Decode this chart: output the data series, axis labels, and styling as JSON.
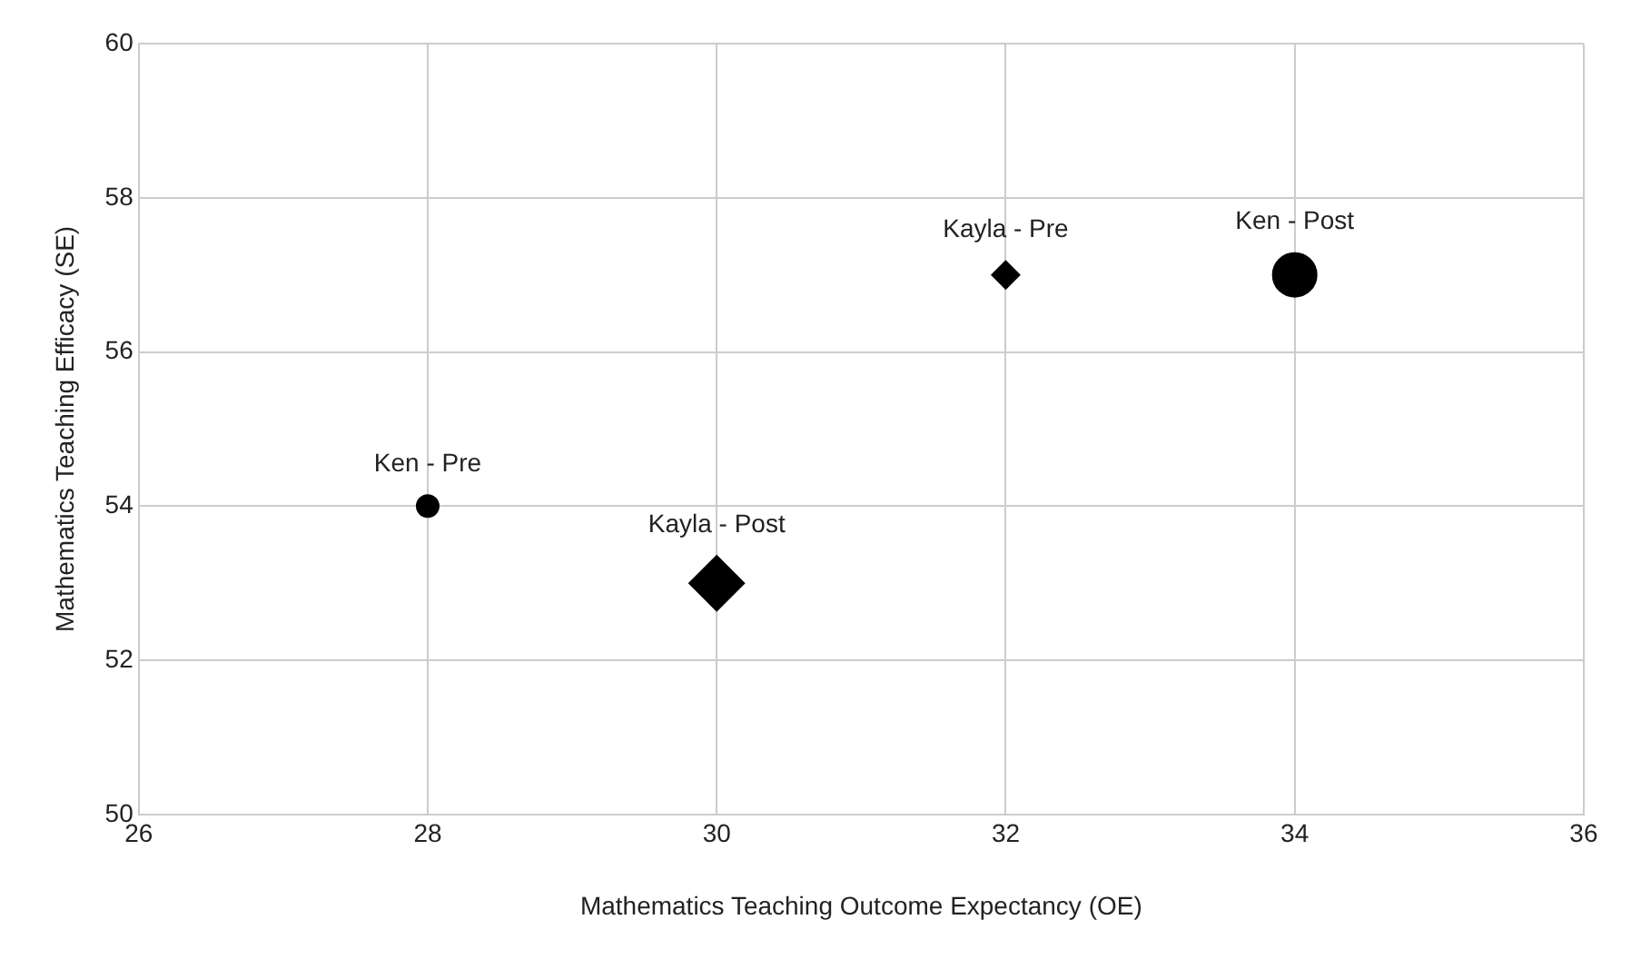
{
  "chart_data": {
    "type": "bubble",
    "xlabel": "Mathematics Teaching Outcome Expectancy (OE)",
    "ylabel": "Mathematics Teaching Efficacy (SE)",
    "series": [
      {
        "name": "Ken - Pre",
        "marker": "circle",
        "color": "#000000",
        "x": [
          28
        ],
        "values": [
          54
        ],
        "sizes": [
          0.25
        ]
      },
      {
        "name": "Kayla - Post",
        "marker": "diamond",
        "color": "#000000",
        "x": [
          30
        ],
        "values": [
          53
        ],
        "sizes": [
          1
        ]
      },
      {
        "name": "Kayla - Pre",
        "marker": "diamond",
        "color": "#000000",
        "x": [
          32
        ],
        "values": [
          57
        ],
        "sizes": [
          0.25
        ]
      },
      {
        "name": "Ken - Post",
        "marker": "circle",
        "color": "#000000",
        "x": [
          34
        ],
        "values": [
          57
        ],
        "sizes": [
          1
        ]
      }
    ],
    "xlim": [
      26,
      36
    ],
    "xticks": [
      26,
      28,
      30,
      32,
      34,
      36
    ],
    "ylim": [
      50,
      60
    ],
    "yticks": [
      50,
      52,
      54,
      56,
      58,
      60
    ],
    "grid": true,
    "legend": false
  }
}
